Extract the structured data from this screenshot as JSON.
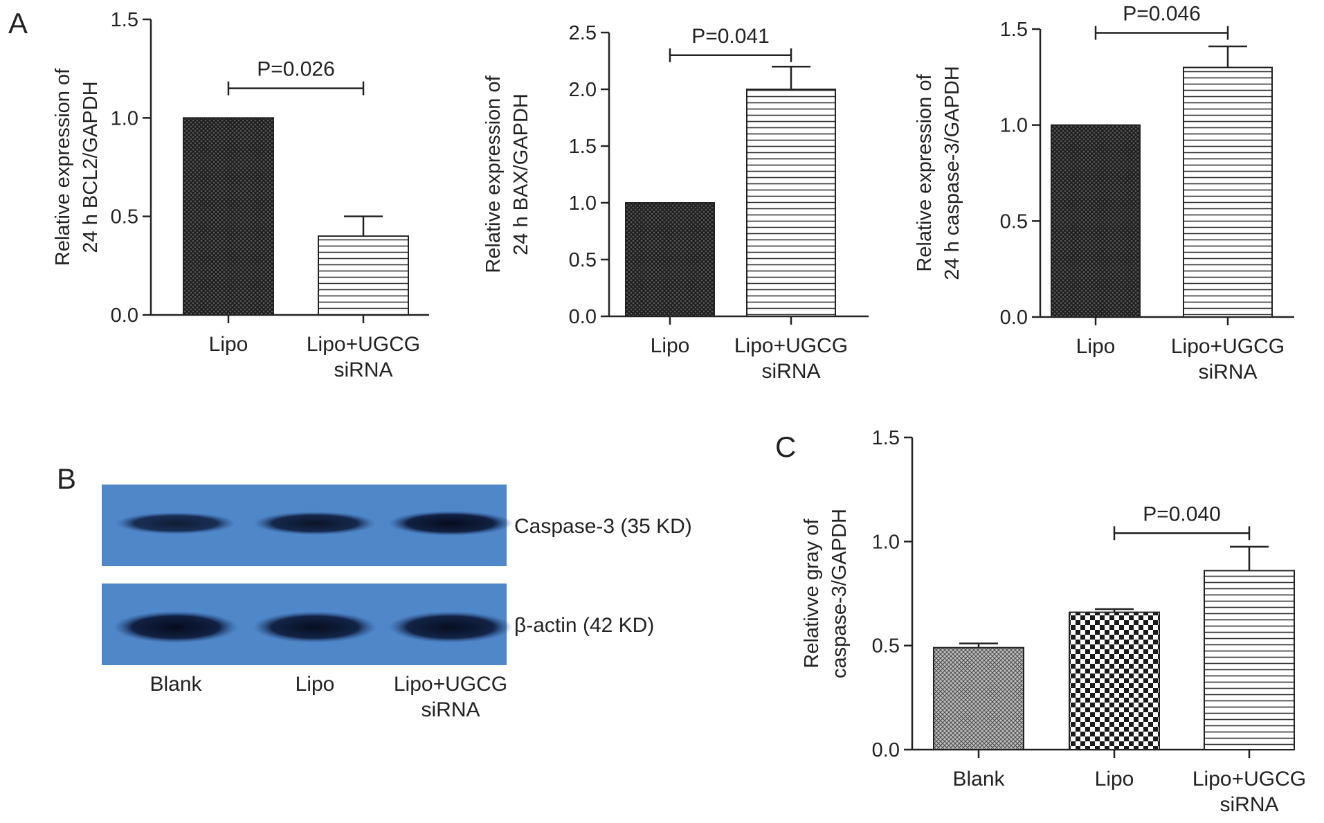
{
  "panels": {
    "A": "A",
    "B": "B",
    "C": "C"
  },
  "colors": {
    "axis": "#222222",
    "dark_fill": "#2a2a2a",
    "stripe": "#333333",
    "blot_bg": "#4f87c9",
    "band": "#0e1c3c"
  },
  "chart_data": [
    {
      "id": "bcl2",
      "panel": "A",
      "type": "bar",
      "categories": [
        [
          "Lipo"
        ],
        [
          "Lipo+UGCG",
          "siRNA"
        ]
      ],
      "values": [
        1.0,
        0.4
      ],
      "errors": [
        0,
        0.1
      ],
      "patterns": [
        "crosshatch",
        "hstripes"
      ],
      "ylabel": [
        "Relative expression of",
        "24 h BCL2/GAPDH"
      ],
      "ylim": [
        0,
        1.5
      ],
      "yticks": [
        "0.0",
        "0.5",
        "1.0",
        "1.5"
      ],
      "ytick_values": [
        0,
        0.5,
        1.0,
        1.5
      ],
      "annotation": {
        "text": "P=0.026",
        "from": 0,
        "to": 1,
        "y": 1.15
      }
    },
    {
      "id": "bax",
      "panel": "A",
      "type": "bar",
      "categories": [
        [
          "Lipo"
        ],
        [
          "Lipo+UGCG",
          "siRNA"
        ]
      ],
      "values": [
        1.0,
        2.0
      ],
      "errors": [
        0,
        0.2
      ],
      "patterns": [
        "crosshatch",
        "hstripes"
      ],
      "ylabel": [
        "Relative expression of",
        "24 h BAX/GAPDH"
      ],
      "ylim": [
        0,
        2.5
      ],
      "yticks": [
        "0.0",
        "0.5",
        "1.0",
        "1.5",
        "2.0",
        "2.5"
      ],
      "ytick_values": [
        0,
        0.5,
        1.0,
        1.5,
        2.0,
        2.5
      ],
      "annotation": {
        "text": "P=0.041",
        "from": 0,
        "to": 1,
        "y": 2.3
      }
    },
    {
      "id": "caspase3_mrna",
      "panel": "A",
      "type": "bar",
      "categories": [
        [
          "Lipo"
        ],
        [
          "Lipo+UGCG",
          "siRNA"
        ]
      ],
      "values": [
        1.0,
        1.3
      ],
      "errors": [
        0,
        0.11
      ],
      "patterns": [
        "crosshatch",
        "hstripes"
      ],
      "ylabel": [
        "Relative expression of",
        "24 h caspase-3/GAPDH"
      ],
      "ylim": [
        0,
        1.5
      ],
      "yticks": [
        "0.0",
        "0.5",
        "1.0",
        "1.5"
      ],
      "ytick_values": [
        0,
        0.5,
        1.0,
        1.5
      ],
      "annotation": {
        "text": "P=0.046",
        "from": 0,
        "to": 1,
        "y": 1.48
      }
    },
    {
      "id": "caspase3_gray",
      "panel": "C",
      "type": "bar",
      "categories": [
        [
          "Blank"
        ],
        [
          "Lipo"
        ],
        [
          "Lipo+UGCG",
          "siRNA"
        ]
      ],
      "values": [
        0.49,
        0.66,
        0.86
      ],
      "errors": [
        0.02,
        0.015,
        0.115
      ],
      "patterns": [
        "finecheck",
        "checker",
        "hstripes"
      ],
      "ylabel": [
        "Relativve gray of",
        "caspase-3/GAPDH"
      ],
      "ylim": [
        0,
        1.5
      ],
      "yticks": [
        "0.0",
        "0.5",
        "1.0",
        "1.5"
      ],
      "ytick_values": [
        0,
        0.5,
        1.0,
        1.5
      ],
      "annotation": {
        "text": "P=0.040",
        "from": 1,
        "to": 2,
        "y": 1.04
      }
    }
  ],
  "blot": {
    "rows": [
      {
        "label": "Caspase-3 (35 KD)",
        "intensity": [
          0.7,
          0.85,
          1.0
        ]
      },
      {
        "label": "β-actin (42 KD)",
        "intensity": [
          1.0,
          0.95,
          0.95
        ]
      }
    ],
    "lanes": [
      [
        "Blank"
      ],
      [
        "Lipo"
      ],
      [
        "Lipo+UGCG",
        "siRNA"
      ]
    ]
  }
}
